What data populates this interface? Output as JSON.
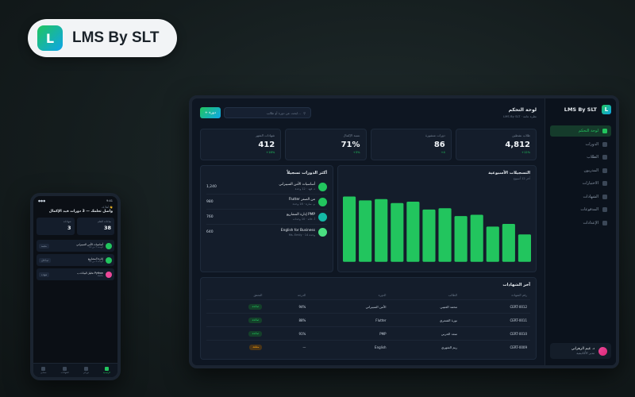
{
  "brand": {
    "logo_letter": "L",
    "name": "LMS By SLT"
  },
  "desktop": {
    "sidebar": {
      "logo_letter": "L",
      "app_name": "LMS By SLT",
      "items": [
        {
          "label": "لوحة التحكم",
          "active": true
        },
        {
          "label": "الدورات",
          "active": false
        },
        {
          "label": "الطلاب",
          "active": false
        },
        {
          "label": "المدربون",
          "active": false
        },
        {
          "label": "الاختبارات",
          "active": false
        },
        {
          "label": "الشهادات",
          "active": false
        },
        {
          "label": "المدفوعات",
          "active": false
        },
        {
          "label": "الإعدادات",
          "active": false
        }
      ],
      "user": {
        "name": "د. غيم الزهراني",
        "role": "مدير الأكاديمية"
      }
    },
    "topbar": {
      "title": "لوحة التحكم",
      "subtitle": "LMS By SLT · نظرة عامة",
      "search_placeholder": "ابحث عن دورة أو طالب...",
      "add_label": "+ دورة"
    },
    "stats": [
      {
        "label": "طلاب نشطين",
        "value": "4,812",
        "trend": "+12%"
      },
      {
        "label": "دورات منشورة",
        "value": "86",
        "trend": "+4"
      },
      {
        "label": "نسبة الإكمال",
        "value": "71%",
        "trend": "+3%"
      },
      {
        "label": "شهادات الشهر",
        "value": "412",
        "trend": "+18%"
      }
    ],
    "courses_card": {
      "title": "أكثر الدورات تسجيلاً",
      "items": [
        {
          "name": "أساسيات الأمن السيبراني",
          "meta": "د. فهد · 12 وحدة",
          "count": "1,240",
          "color": "#22c55e"
        },
        {
          "name": "Flutter من الصفر",
          "meta": "م. سارة · 18 وحدة",
          "count": "980",
          "color": "#22c55e"
        },
        {
          "name": "إدارة المشاريع PMP",
          "meta": "أ. خالد · 10 وحدات",
          "count": "760",
          "color": "#14b8a6"
        },
        {
          "name": "English for Business",
          "meta": "Ms. Emily · 14 وحدة",
          "count": "640",
          "color": "#4ade80"
        }
      ]
    },
    "chart_card": {
      "title": "التسجيلات الأسبوعية",
      "subtitle": "آخر 12 أسبوع"
    },
    "chart_data": {
      "type": "bar",
      "values": [
        50,
        47,
        48,
        45,
        46,
        40,
        41,
        35,
        36,
        27,
        29,
        21
      ],
      "ylim": [
        0,
        60
      ],
      "color": "#22c55e"
    },
    "table_card": {
      "title": "آخر الشهادات",
      "headers": [
        "رقم الشهادة",
        "الطالب",
        "الدورة",
        "الدرجة",
        "التحقق"
      ],
      "rows": [
        {
          "id": "CERT-0012",
          "student": "محمد العتيبي",
          "course": "الأمن السيبراني",
          "grade": "94%",
          "status": "صالحة",
          "pending": false
        },
        {
          "id": "CERT-0011",
          "student": "نورة الشمري",
          "course": "Flutter",
          "grade": "88%",
          "status": "صالحة",
          "pending": false
        },
        {
          "id": "CERT-0010",
          "student": "سعد الحربي",
          "course": "PMP",
          "grade": "91%",
          "status": "صالحة",
          "pending": false
        },
        {
          "id": "CERT-0009",
          "student": "ريم الشهري",
          "course": "English",
          "grade": "—",
          "status": "معلقة",
          "pending": true
        }
      ]
    }
  },
  "phone": {
    "time": "9:41",
    "signal": "●●●",
    "greeting_small": "أهلاً بك 👋",
    "greeting_big": "واصل تعلمك — 3 دورات قيد الإكمال",
    "stats": [
      {
        "label": "شهادات",
        "value": "3"
      },
      {
        "label": "ساعات التعلم",
        "value": "38"
      }
    ],
    "items": [
      {
        "name": "أساسيات الأمن السيبراني",
        "meta": "الوحدة 7 من 12",
        "tag": "متابعة",
        "color": "#22c55e"
      },
      {
        "name": "إدارة المشاريع",
        "meta": "الوحدة 3 من 10",
        "tag": "ابدأ الآن",
        "color": "#22c55e"
      },
      {
        "name": "تحليل البيانات بـ Python",
        "meta": "مكتملة",
        "tag": "شهادة",
        "color": "#ec4899"
      }
    ],
    "tabs": [
      {
        "label": "حسابي",
        "active": false
      },
      {
        "label": "الشهادات",
        "active": false
      },
      {
        "label": "دوراتي",
        "active": false
      },
      {
        "label": "الرئيسية",
        "active": true
      }
    ]
  }
}
